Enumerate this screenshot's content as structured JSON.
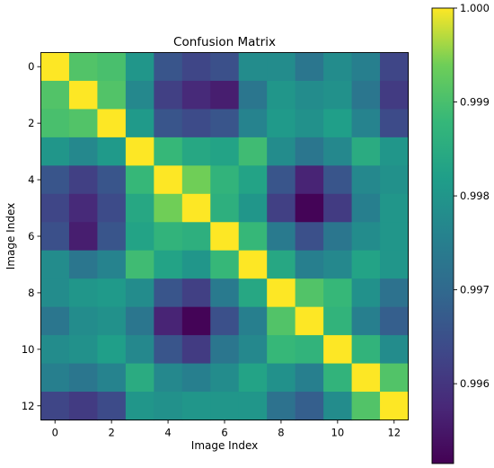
{
  "chart_data": {
    "type": "heatmap",
    "title": "Confusion Matrix",
    "xlabel": "Image Index",
    "ylabel": "Image Index",
    "x_ticks": [
      "0",
      "2",
      "4",
      "6",
      "8",
      "10",
      "12"
    ],
    "y_ticks": [
      "0",
      "2",
      "4",
      "6",
      "8",
      "10",
      "12"
    ],
    "colormap": "viridis",
    "colorbar": {
      "range": [
        0.99515,
        1.0
      ],
      "ticks": [
        0.996,
        0.997,
        0.998,
        0.999,
        1.0
      ],
      "tick_labels": [
        "0.996",
        "0.997",
        "0.998",
        "0.999",
        "1.000"
      ]
    },
    "matrix": [
      [
        1.0,
        0.9991,
        0.999,
        0.998,
        0.9966,
        0.9963,
        0.9965,
        0.9978,
        0.9978,
        0.9973,
        0.9978,
        0.9975,
        0.9963
      ],
      [
        0.9991,
        1.0,
        0.9991,
        0.9977,
        0.9962,
        0.9958,
        0.9956,
        0.9973,
        0.998,
        0.9978,
        0.9979,
        0.9973,
        0.9961
      ],
      [
        0.999,
        0.9991,
        1.0,
        0.9981,
        0.9966,
        0.9964,
        0.9966,
        0.9976,
        0.9981,
        0.9979,
        0.9982,
        0.9976,
        0.9964
      ],
      [
        0.998,
        0.9977,
        0.9981,
        1.0,
        0.9988,
        0.9984,
        0.9983,
        0.9989,
        0.9978,
        0.9973,
        0.9977,
        0.9985,
        0.998
      ],
      [
        0.9966,
        0.9962,
        0.9966,
        0.9988,
        1.0,
        0.9994,
        0.9987,
        0.9983,
        0.9966,
        0.9957,
        0.9966,
        0.9977,
        0.9979
      ],
      [
        0.9963,
        0.9958,
        0.9964,
        0.9984,
        0.9994,
        1.0,
        0.9986,
        0.998,
        0.9962,
        0.9952,
        0.9961,
        0.9975,
        0.998
      ],
      [
        0.9965,
        0.9956,
        0.9966,
        0.9983,
        0.9987,
        0.9986,
        1.0,
        0.9988,
        0.9974,
        0.9965,
        0.9973,
        0.9978,
        0.998
      ],
      [
        0.9978,
        0.9973,
        0.9976,
        0.9989,
        0.9983,
        0.998,
        0.9988,
        1.0,
        0.9984,
        0.9975,
        0.9977,
        0.9983,
        0.998
      ],
      [
        0.9978,
        0.998,
        0.9981,
        0.9978,
        0.9966,
        0.9962,
        0.9974,
        0.9984,
        1.0,
        0.9991,
        0.9988,
        0.9979,
        0.9972
      ],
      [
        0.9973,
        0.9978,
        0.9979,
        0.9973,
        0.9957,
        0.9952,
        0.9965,
        0.9975,
        0.9991,
        1.0,
        0.9987,
        0.9975,
        0.9968
      ],
      [
        0.9978,
        0.9979,
        0.9982,
        0.9977,
        0.9966,
        0.9961,
        0.9973,
        0.9977,
        0.9988,
        0.9987,
        1.0,
        0.9987,
        0.9978
      ],
      [
        0.9975,
        0.9973,
        0.9976,
        0.9985,
        0.9977,
        0.9975,
        0.9978,
        0.9983,
        0.9979,
        0.9975,
        0.9987,
        1.0,
        0.9991
      ],
      [
        0.9963,
        0.9961,
        0.9964,
        0.998,
        0.9979,
        0.998,
        0.998,
        0.998,
        0.9972,
        0.9968,
        0.9978,
        0.9991,
        1.0
      ]
    ]
  }
}
